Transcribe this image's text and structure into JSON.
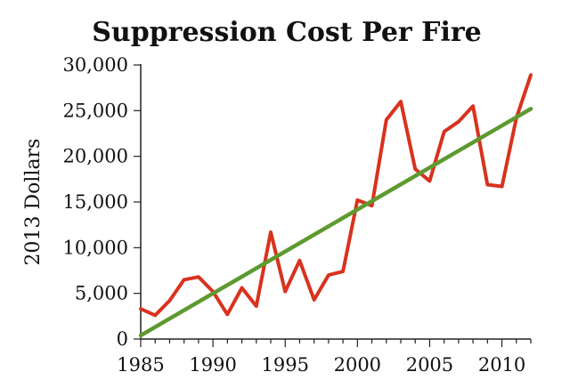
{
  "chart_data": {
    "type": "line",
    "title": "Suppression Cost Per Fire",
    "xlabel": "",
    "ylabel": "2013 Dollars",
    "xlim": [
      1985,
      2012
    ],
    "ylim": [
      0,
      30000
    ],
    "x_ticks": [
      "1985",
      "1990",
      "1995",
      "2000",
      "2005",
      "2010"
    ],
    "x_tick_values": [
      1985,
      1990,
      1995,
      2000,
      2005,
      2010
    ],
    "y_ticks": [
      "0",
      "5,000",
      "10,000",
      "15,000",
      "20,000",
      "25,000",
      "30,000"
    ],
    "y_tick_values": [
      0,
      5000,
      10000,
      15000,
      20000,
      25000,
      30000
    ],
    "grid": false,
    "legend": "none",
    "series": [
      {
        "x": [
          1985,
          1986,
          1987,
          1988,
          1989,
          1990,
          1991,
          1992,
          1993,
          1994,
          1995,
          1996,
          1997,
          1998,
          1999,
          2000,
          2001,
          2002,
          2003,
          2004,
          2005,
          2006,
          2007,
          2008,
          2009,
          2010,
          2011,
          2012
        ],
        "values": [
          3300,
          2600,
          4200,
          6500,
          6800,
          5200,
          2700,
          5600,
          3600,
          11700,
          5200,
          8600,
          4300,
          7000,
          7400,
          15200,
          14600,
          24000,
          26000,
          18600,
          17300,
          22700,
          23800,
          25500,
          16900,
          16700,
          24200,
          28900
        ],
        "color": "#d9321e"
      },
      {
        "x": [
          1985,
          2012
        ],
        "values": [
          400,
          25200
        ],
        "color": "#5e9a2f"
      }
    ]
  }
}
